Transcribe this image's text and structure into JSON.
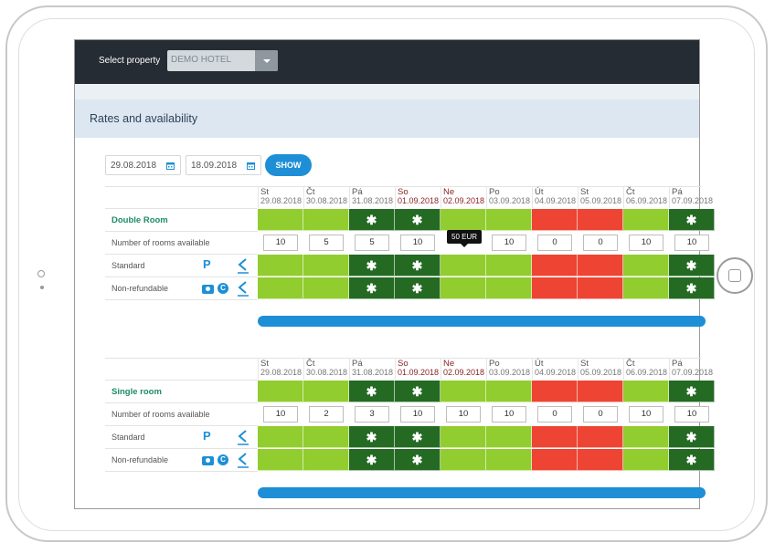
{
  "header": {
    "select_label": "Select property",
    "property_value": "DEMO HOTEL"
  },
  "page_title": "Rates and availability",
  "filters": {
    "date_from": "29.08.2018",
    "date_to": "18.09.2018",
    "show_label": "SHOW"
  },
  "tooltip": "50 EUR",
  "days": [
    {
      "day": "St",
      "date": "29.08.2018",
      "weekend": false
    },
    {
      "day": "Čt",
      "date": "30.08.2018",
      "weekend": false
    },
    {
      "day": "Pá",
      "date": "31.08.2018",
      "weekend": false
    },
    {
      "day": "So",
      "date": "01.09.2018",
      "weekend": true
    },
    {
      "day": "Ne",
      "date": "02.09.2018",
      "weekend": true
    },
    {
      "day": "Po",
      "date": "03.09.2018",
      "weekend": false
    },
    {
      "day": "Út",
      "date": "04.09.2018",
      "weekend": false
    },
    {
      "day": "St",
      "date": "05.09.2018",
      "weekend": false
    },
    {
      "day": "Čt",
      "date": "06.09.2018",
      "weekend": false
    },
    {
      "day": "Pá",
      "date": "07.09.2018",
      "weekend": false
    }
  ],
  "rooms": [
    {
      "name": "Double Room",
      "rooms_label": "Number of rooms available",
      "availability": [
        "10",
        "5",
        "5",
        "10",
        "",
        "10",
        "0",
        "0",
        "10",
        "10"
      ],
      "status": [
        "g",
        "g",
        "dg",
        "dg",
        "g",
        "g",
        "r",
        "r",
        "g",
        "dg"
      ],
      "rates": [
        {
          "name": "Standard",
          "icon": "parking-icon"
        },
        {
          "name": "Non-refundable",
          "icon": "money-icon"
        }
      ]
    },
    {
      "name": "Single room",
      "rooms_label": "Number of rooms available",
      "availability": [
        "10",
        "2",
        "3",
        "10",
        "10",
        "10",
        "0",
        "0",
        "10",
        "10"
      ],
      "status": [
        "g",
        "g",
        "dg",
        "dg",
        "g",
        "g",
        "r",
        "r",
        "g",
        "dg"
      ],
      "rates": [
        {
          "name": "Standard",
          "icon": "parking-icon"
        },
        {
          "name": "Non-refundable",
          "icon": "money-icon"
        }
      ]
    }
  ],
  "colors": {
    "available": "#91cd2f",
    "closed_special": "#246a23",
    "sold_out": "#ee4433",
    "accent": "#1e8fd6"
  }
}
